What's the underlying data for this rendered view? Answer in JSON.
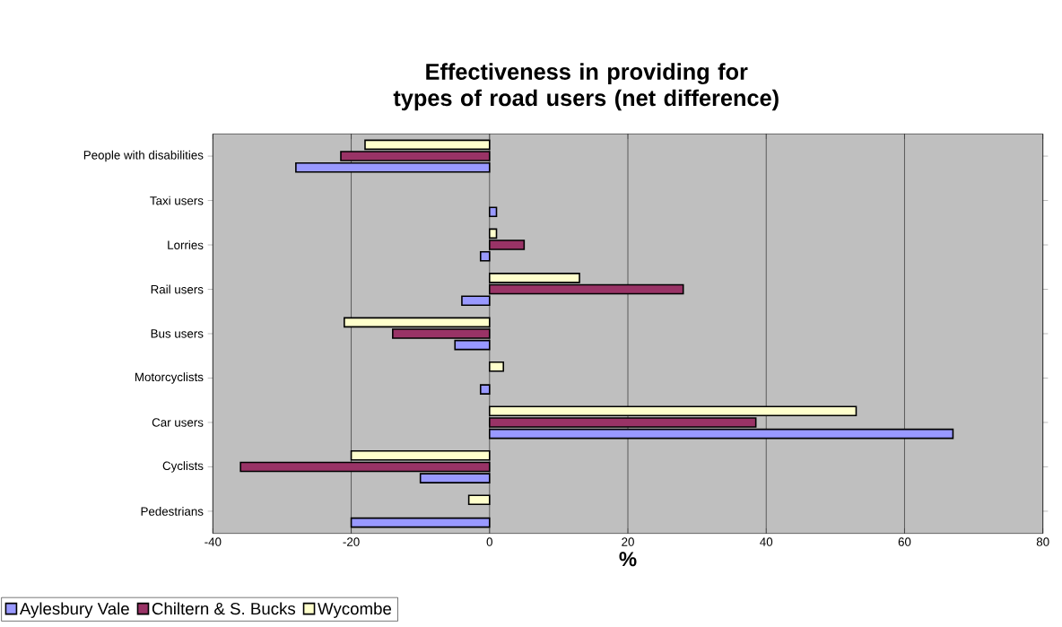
{
  "chart_data": {
    "type": "bar",
    "orientation": "horizontal",
    "title": "Effectiveness in providing for types of road users (net difference)",
    "xlabel": "%",
    "categories": [
      "People with disabilities",
      "Taxi users",
      "Lorries",
      "Rail users",
      "Bus users",
      "Motorcyclists",
      "Car users",
      "Cyclists",
      "Pedestrians"
    ],
    "series": [
      {
        "name": "Aylesbury Vale",
        "color": "#9999ff",
        "values": [
          -28,
          1,
          -1.3,
          -4,
          -5,
          -1.3,
          67,
          -10,
          -20
        ]
      },
      {
        "name": "Chiltern  & S. Bucks",
        "color": "#993366",
        "values": [
          -21.5,
          null,
          5,
          28,
          -14,
          null,
          38.5,
          -36,
          null
        ]
      },
      {
        "name": "Wycombe",
        "color": "#ffffcc",
        "values": [
          -18,
          null,
          1,
          13,
          -21,
          2,
          53,
          -20,
          -3
        ]
      }
    ],
    "xlim": [
      -40,
      80
    ],
    "xticks": [
      -40,
      -20,
      0,
      20,
      40,
      60,
      80
    ],
    "grid": "x",
    "legend": "bottom left"
  }
}
